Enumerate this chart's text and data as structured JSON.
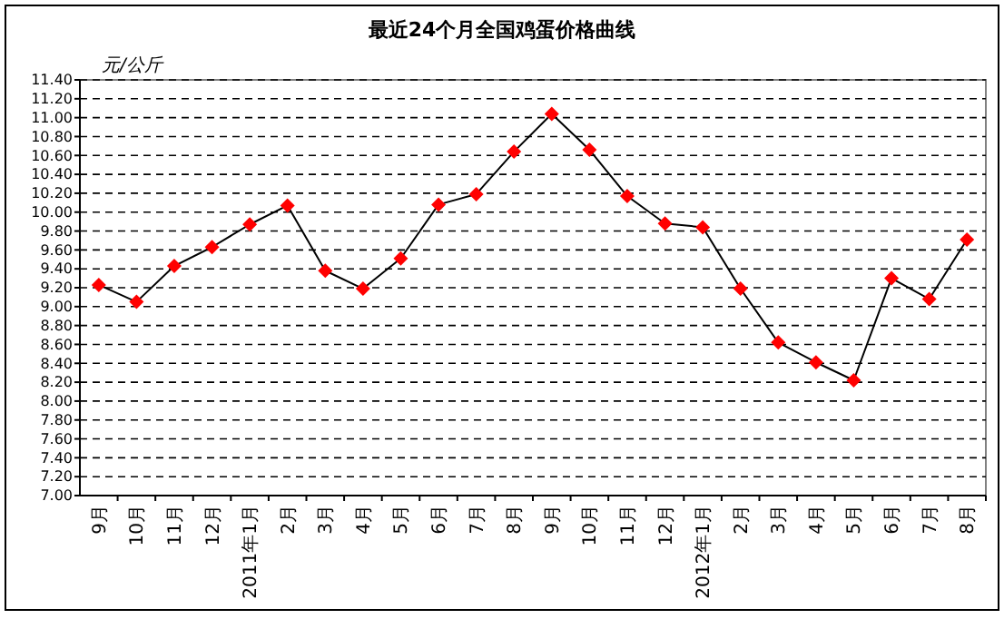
{
  "chart_data": {
    "type": "line",
    "title": "最近24个月全国鸡蛋价格曲线",
    "ylabel": "元/公斤",
    "categories": [
      "9月",
      "10月",
      "11月",
      "12月",
      "2011年1月",
      "2月",
      "3月",
      "4月",
      "5月",
      "6月",
      "7月",
      "8月",
      "9月",
      "10月",
      "11月",
      "12月",
      "2012年1月",
      "2月",
      "3月",
      "4月",
      "5月",
      "6月",
      "7月",
      "8月"
    ],
    "series": [
      {
        "color": "#ff0000",
        "values": [
          9.23,
          9.05,
          9.43,
          9.63,
          9.87,
          10.07,
          9.38,
          9.19,
          9.51,
          10.08,
          10.19,
          10.64,
          11.04,
          10.66,
          10.17,
          9.88,
          9.84,
          9.19,
          8.62,
          8.41,
          8.22,
          9.3,
          9.08,
          9.71
        ]
      }
    ],
    "ylim": [
      7,
      11.4
    ],
    "yticks": [
      {
        "value": 7,
        "label": "7.00"
      },
      {
        "value": 7.2,
        "label": "7.20"
      },
      {
        "value": 7.4,
        "label": "7.40"
      },
      {
        "value": 7.6,
        "label": "7.60"
      },
      {
        "value": 7.8,
        "label": "7.80"
      },
      {
        "value": 8,
        "label": "8.00"
      },
      {
        "value": 8.2,
        "label": "8.20"
      },
      {
        "value": 8.4,
        "label": "8.40"
      },
      {
        "value": 8.6,
        "label": "8.60"
      },
      {
        "value": 8.8,
        "label": "8.80"
      },
      {
        "value": 9,
        "label": "9.00"
      },
      {
        "value": 9.2,
        "label": "9.20"
      },
      {
        "value": 9.4,
        "label": "9.40"
      },
      {
        "value": 9.6,
        "label": "9.60"
      },
      {
        "value": 9.8,
        "label": "9.80"
      },
      {
        "value": 10,
        "label": "10.00"
      },
      {
        "value": 10.2,
        "label": "10.20"
      },
      {
        "value": 10.4,
        "label": "10.40"
      },
      {
        "value": 10.6,
        "label": "10.60"
      },
      {
        "value": 10.8,
        "label": "10.80"
      },
      {
        "value": 11,
        "label": "11.00"
      },
      {
        "value": 11.2,
        "label": "11.20"
      },
      {
        "value": 11.4,
        "label": "11.40"
      }
    ],
    "grid": "y",
    "marker": "diamond",
    "line_style": "solid"
  }
}
